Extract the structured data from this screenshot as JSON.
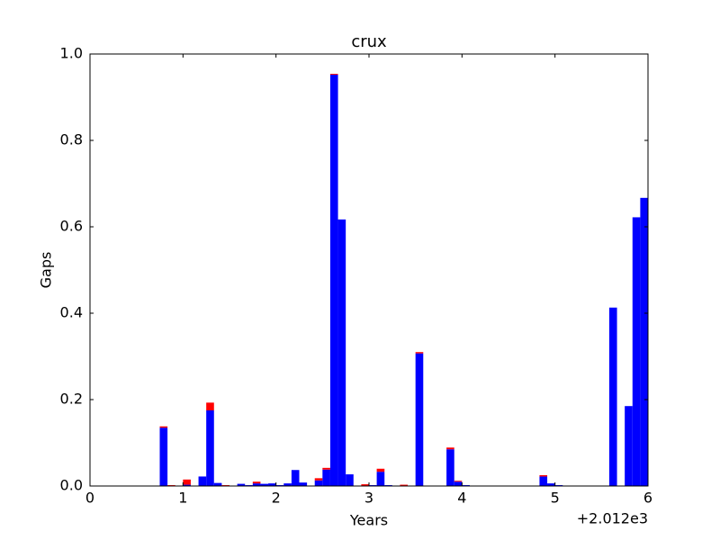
{
  "chart_data": {
    "type": "histogram",
    "title": "crux",
    "x_label": "Years",
    "y_label": "Gaps",
    "x_offset_label": "+2.012e3",
    "bins": [
      0,
      0.0833,
      0.1667,
      0.25,
      0.3333,
      0.4167,
      0.5,
      0.5833,
      0.6667,
      0.75,
      0.8333,
      0.9167,
      1,
      1.0833,
      1.1667,
      1.25,
      1.3333,
      1.4167,
      1.5,
      1.5833,
      1.6667,
      1.75,
      1.8333,
      1.9167,
      2,
      2.0833,
      2.1667,
      2.25,
      2.3333,
      2.4167,
      2.5,
      2.5833,
      2.6667,
      2.75,
      2.8333,
      2.9167,
      3,
      3.0833,
      3.1667,
      3.25,
      3.3333,
      3.4167,
      3.5,
      3.5833,
      3.6667,
      3.75,
      3.8333,
      3.9167,
      4,
      4.0833,
      4.1667,
      4.25,
      4.3333,
      4.4167,
      4.5,
      4.5833,
      4.6667,
      4.75,
      4.8333,
      4.9167,
      5,
      5.0833,
      5.1667,
      5.25,
      5.3333,
      5.4167,
      5.5,
      5.5833,
      5.6667,
      5.75,
      5.8333,
      5.9167,
      6
    ],
    "stacked": true,
    "series": [
      {
        "color": "#0000ff",
        "values": [
          0,
          0,
          0,
          0,
          0,
          0,
          0,
          0,
          0,
          0.135,
          0,
          0,
          0.003,
          0,
          0.022,
          0.175,
          0.007,
          0.001,
          0,
          0.005,
          0.002,
          0.006,
          0.005,
          0.006,
          0.002,
          0.006,
          0.037,
          0.008,
          0.001,
          0.013,
          0.038,
          0.952,
          0.617,
          0.027,
          0.001,
          0,
          0.002,
          0.033,
          0.002,
          0.001,
          0,
          0.001,
          0.307,
          0.001,
          0.001,
          0.001,
          0.085,
          0.01,
          0.002,
          0,
          0.001,
          0,
          0,
          0,
          0,
          0,
          0,
          0.001,
          0.022,
          0.006,
          0.002,
          0.001,
          0,
          0,
          0,
          0,
          0,
          0.413,
          0.001,
          0.185,
          0.622,
          0.667
        ]
      },
      {
        "color": "#ff0000",
        "values": [
          0,
          0,
          0,
          0,
          0,
          0,
          0,
          0,
          0,
          0.003,
          0.002,
          0,
          0.012,
          0,
          0,
          0.018,
          0,
          0.001,
          0.001,
          0,
          0,
          0.004,
          0,
          0,
          0,
          0,
          0,
          0,
          0,
          0.005,
          0.004,
          0.002,
          0,
          0,
          0,
          0.004,
          0,
          0.007,
          0,
          0,
          0.003,
          0,
          0.003,
          0,
          0,
          0,
          0.004,
          0.002,
          0,
          0,
          0,
          0,
          0,
          0,
          0,
          0,
          0,
          0,
          0.003,
          0,
          0,
          0,
          0,
          0.001,
          0.001,
          0.001,
          0.001,
          0,
          0,
          0,
          0,
          0
        ]
      }
    ],
    "xlim": [
      0,
      6
    ],
    "xticks": [
      0,
      1,
      2,
      3,
      4,
      5,
      6
    ],
    "ylim": [
      0,
      1
    ],
    "yticks": [
      {
        "value": 0,
        "label": "0.0"
      },
      0.2,
      0.4,
      0.6,
      0.8,
      {
        "value": 1,
        "label": "1.0"
      }
    ]
  }
}
